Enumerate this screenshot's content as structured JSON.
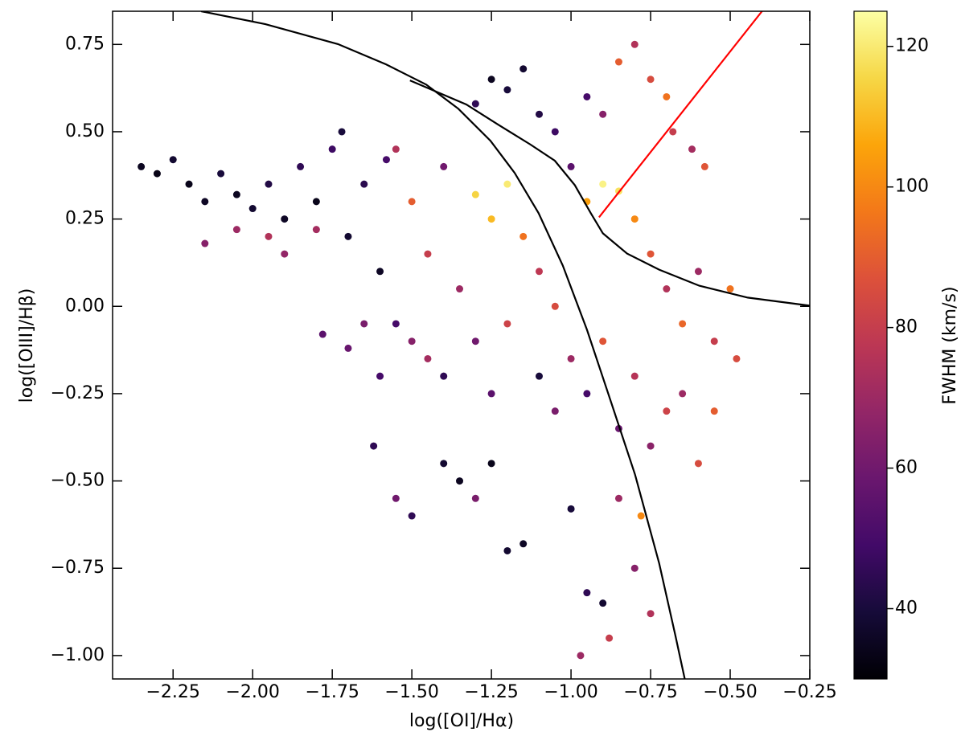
{
  "chart_data": {
    "type": "scatter",
    "xlabel": "log([OI]/Hα)",
    "ylabel": "log([OIII]/Hβ)",
    "colorbar_label": "FWHM (km/s)",
    "colormap": "inferno",
    "xlim": [
      -2.44,
      -0.25
    ],
    "ylim": [
      -1.067,
      0.845
    ],
    "clim": [
      30,
      125
    ],
    "xticks": [
      {
        "value": -2.25,
        "label": "−2.25"
      },
      {
        "value": -2.0,
        "label": "−2.00"
      },
      {
        "value": -1.75,
        "label": "−1.75"
      },
      {
        "value": -1.5,
        "label": "−1.50"
      },
      {
        "value": -1.25,
        "label": "−1.25"
      },
      {
        "value": -1.0,
        "label": "−1.00"
      },
      {
        "value": -0.75,
        "label": "−0.75"
      },
      {
        "value": -0.5,
        "label": "−0.50"
      },
      {
        "value": -0.25,
        "label": "−0.25"
      }
    ],
    "yticks": [
      {
        "value": -1.0,
        "label": "−1.00"
      },
      {
        "value": -0.75,
        "label": "−0.75"
      },
      {
        "value": -0.5,
        "label": "−0.50"
      },
      {
        "value": -0.25,
        "label": "−0.25"
      },
      {
        "value": 0,
        "label": "0.00"
      },
      0.25,
      {
        "value": 0.5,
        "label": "0.50"
      },
      0.75
    ],
    "cticks": [
      40,
      60,
      80,
      100,
      120
    ],
    "points": {
      "x": [
        -2.35,
        -2.3,
        -2.25,
        -2.2,
        -2.15,
        -2.1,
        -2.05,
        -2.0,
        -1.95,
        -1.9,
        -1.85,
        -1.8,
        -1.75,
        -1.72,
        -1.7,
        -1.65,
        -1.6,
        -1.58,
        -2.15,
        -2.05,
        -1.95,
        -1.9,
        -1.8,
        -1.78,
        -1.7,
        -1.65,
        -1.55,
        -1.5,
        -1.45,
        -1.4,
        -1.35,
        -1.3,
        -1.25,
        -1.2,
        -1.15,
        -1.1,
        -1.05,
        -1.0,
        -0.95,
        -0.9,
        -0.85,
        -0.8,
        -0.75,
        -0.7,
        -0.65,
        -0.6,
        -0.55,
        -0.5,
        -0.48,
        -1.55,
        -1.5,
        -1.45,
        -1.4,
        -1.3,
        -1.25,
        -1.2,
        -1.1,
        -1.05,
        -1.0,
        -0.95,
        -0.9,
        -0.85,
        -0.8,
        -0.75,
        -0.7,
        -0.65,
        -0.6,
        -0.55,
        -0.85,
        -0.8,
        -0.75,
        -0.7,
        -0.68,
        -0.62,
        -0.58,
        -0.9,
        -0.95,
        -1.25,
        -1.2,
        -1.15,
        -1.3,
        -1.1,
        -1.05,
        -1.55,
        -1.5,
        -1.4,
        -1.35,
        -1.3,
        -1.25,
        -1.2,
        -1.15,
        -1.0,
        -0.95,
        -0.9,
        -0.85,
        -0.8,
        -0.78,
        -0.75,
        -0.88,
        -0.97,
        -1.62,
        -1.6
      ],
      "y": [
        0.4,
        0.38,
        0.42,
        0.35,
        0.3,
        0.38,
        0.32,
        0.28,
        0.35,
        0.25,
        0.4,
        0.3,
        0.45,
        0.5,
        0.2,
        0.35,
        0.1,
        0.42,
        0.18,
        0.22,
        0.2,
        0.15,
        0.22,
        -0.08,
        -0.12,
        -0.05,
        0.45,
        0.3,
        0.15,
        0.4,
        0.05,
        0.32,
        0.25,
        0.35,
        0.2,
        0.1,
        0.0,
        0.4,
        0.3,
        0.35,
        0.33,
        0.25,
        0.15,
        0.05,
        -0.05,
        0.1,
        -0.1,
        0.05,
        -0.15,
        -0.05,
        -0.1,
        -0.15,
        -0.2,
        -0.1,
        -0.25,
        -0.05,
        -0.2,
        -0.3,
        -0.15,
        -0.25,
        -0.1,
        -0.35,
        -0.2,
        -0.4,
        -0.3,
        -0.25,
        -0.45,
        -0.3,
        0.7,
        0.75,
        0.65,
        0.6,
        0.5,
        0.45,
        0.4,
        0.55,
        0.6,
        0.65,
        0.62,
        0.68,
        0.58,
        0.55,
        0.5,
        -0.55,
        -0.6,
        -0.45,
        -0.5,
        -0.55,
        -0.45,
        -0.7,
        -0.68,
        -0.58,
        -0.82,
        -0.85,
        -0.55,
        -0.75,
        -0.6,
        -0.88,
        -0.95,
        -1.0,
        -0.4,
        -0.2
      ],
      "fwhm": [
        35,
        33,
        38,
        34,
        36,
        40,
        35,
        38,
        42,
        36,
        45,
        34,
        48,
        40,
        38,
        44,
        36,
        50,
        65,
        70,
        75,
        68,
        72,
        55,
        58,
        62,
        75,
        90,
        80,
        60,
        70,
        115,
        110,
        120,
        95,
        78,
        85,
        55,
        105,
        122,
        118,
        100,
        88,
        75,
        92,
        70,
        80,
        95,
        85,
        50,
        65,
        72,
        45,
        60,
        55,
        82,
        40,
        62,
        70,
        50,
        88,
        58,
        76,
        66,
        82,
        70,
        85,
        90,
        90,
        75,
        85,
        95,
        80,
        72,
        88,
        65,
        50,
        35,
        40,
        38,
        45,
        42,
        48,
        60,
        45,
        38,
        35,
        62,
        34,
        38,
        36,
        40,
        45,
        38,
        70,
        65,
        100,
        75,
        80,
        70,
        45,
        50
      ]
    },
    "lines": [
      {
        "color": "#000000",
        "x": [
          -2.162,
          -1.96,
          -1.732,
          -1.581,
          -1.455,
          -1.354,
          -1.253,
          -1.177,
          -1.102,
          -1.026,
          -0.95,
          -0.874,
          -0.799,
          -0.723,
          -0.672,
          -0.642
        ],
        "y": [
          0.845,
          0.808,
          0.751,
          0.693,
          0.635,
          0.566,
          0.474,
          0.382,
          0.267,
          0.117,
          -0.067,
          -0.275,
          -0.482,
          -0.736,
          -0.943,
          -1.07
        ]
      },
      {
        "color": "#000000",
        "x": [
          -1.506,
          -1.329,
          -1.228,
          -1.127,
          -1.051,
          -0.988,
          -0.938,
          -0.9,
          -0.824,
          -0.723,
          -0.597,
          -0.445,
          -0.251
        ],
        "y": [
          0.647,
          0.578,
          0.52,
          0.463,
          0.417,
          0.347,
          0.267,
          0.209,
          0.151,
          0.105,
          0.059,
          0.025,
          0.002
        ]
      },
      {
        "color": "#ff0000",
        "x": [
          -0.912,
          -0.4
        ],
        "y": [
          0.255,
          0.845
        ]
      }
    ]
  }
}
